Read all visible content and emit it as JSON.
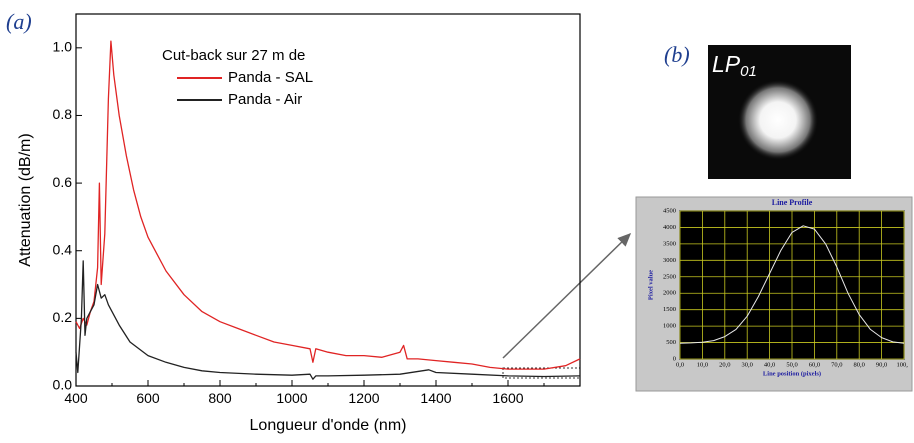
{
  "panel_labels": [
    "(a)",
    "(b)"
  ],
  "mode_image": {
    "label": "LP",
    "subscript": "01"
  },
  "chart_data": [
    {
      "type": "line",
      "legend_title": "Cut-back sur 27 m de",
      "xlabel": "Longueur d'onde (nm)",
      "ylabel": "Attenuation (dB/m)",
      "xlim": [
        400,
        1800
      ],
      "ylim": [
        0,
        1.1
      ],
      "xticks": [
        400,
        600,
        800,
        1000,
        1200,
        1400,
        1600
      ],
      "yticks": [
        {
          "value": 0,
          "label": "0.0"
        },
        0.2,
        0.4,
        0.6,
        0.8,
        {
          "value": 1,
          "label": "1.0"
        }
      ],
      "series": [
        {
          "name": "Panda - SAL",
          "color": "#e02424",
          "x": [
            400,
            410,
            420,
            430,
            440,
            450,
            460,
            465,
            470,
            480,
            490,
            497,
            505,
            520,
            540,
            560,
            580,
            600,
            650,
            700,
            750,
            800,
            850,
            900,
            950,
            1000,
            1050,
            1058,
            1066,
            1100,
            1150,
            1200,
            1250,
            1300,
            1310,
            1320,
            1350,
            1400,
            1450,
            1500,
            1550,
            1600,
            1650,
            1700,
            1760,
            1800
          ],
          "values": [
            0.19,
            0.17,
            0.2,
            0.18,
            0.22,
            0.25,
            0.35,
            0.6,
            0.3,
            0.45,
            0.85,
            1.02,
            0.92,
            0.8,
            0.68,
            0.58,
            0.5,
            0.44,
            0.34,
            0.27,
            0.22,
            0.19,
            0.17,
            0.15,
            0.13,
            0.12,
            0.11,
            0.07,
            0.11,
            0.1,
            0.09,
            0.09,
            0.085,
            0.1,
            0.12,
            0.08,
            0.08,
            0.075,
            0.07,
            0.065,
            0.055,
            0.05,
            0.05,
            0.05,
            0.06,
            0.08
          ]
        },
        {
          "name": "Panda - Air",
          "color": "#222222",
          "x": [
            400,
            405,
            415,
            420,
            425,
            430,
            440,
            450,
            460,
            470,
            480,
            490,
            500,
            520,
            550,
            600,
            650,
            700,
            750,
            800,
            900,
            1000,
            1050,
            1058,
            1066,
            1100,
            1200,
            1300,
            1380,
            1400,
            1500,
            1600,
            1700,
            1800
          ],
          "values": [
            0.1,
            0.04,
            0.2,
            0.37,
            0.15,
            0.2,
            0.22,
            0.24,
            0.3,
            0.26,
            0.27,
            0.24,
            0.22,
            0.18,
            0.13,
            0.09,
            0.07,
            0.055,
            0.045,
            0.04,
            0.035,
            0.032,
            0.035,
            0.02,
            0.03,
            0.03,
            0.032,
            0.035,
            0.048,
            0.04,
            0.035,
            0.03,
            0.028,
            0.03
          ]
        }
      ]
    },
    {
      "type": "line",
      "title": "Line Profile",
      "xlabel": "Line position (pixels)",
      "ylabel": "Pixel value",
      "xlim": [
        0,
        100
      ],
      "ylim": [
        0,
        4500
      ],
      "xticks": [
        {
          "value": 0,
          "label": "0,0"
        },
        {
          "value": 10,
          "label": "10,0"
        },
        {
          "value": 20,
          "label": "20,0"
        },
        {
          "value": 30,
          "label": "30,0"
        },
        {
          "value": 40,
          "label": "40,0"
        },
        {
          "value": 50,
          "label": "50,0"
        },
        {
          "value": 60,
          "label": "60,0"
        },
        {
          "value": 70,
          "label": "70,0"
        },
        {
          "value": 80,
          "label": "80,0"
        },
        {
          "value": 90,
          "label": "90,0"
        },
        {
          "value": 100,
          "label": "100,"
        }
      ],
      "yticks": [
        0,
        250,
        500,
        750,
        1000,
        1250,
        1500,
        1750,
        2000,
        2250,
        2500,
        2750,
        3000,
        3250,
        3500,
        3750,
        4000,
        4250,
        4500
      ],
      "grid": true,
      "series": [
        {
          "color": "#e8e8e8",
          "x": [
            0,
            5,
            10,
            15,
            20,
            25,
            30,
            35,
            40,
            45,
            50,
            55,
            60,
            65,
            70,
            75,
            80,
            85,
            90,
            95,
            100
          ],
          "values": [
            480,
            490,
            510,
            560,
            680,
            900,
            1300,
            1900,
            2600,
            3300,
            3850,
            4050,
            3950,
            3500,
            2800,
            2000,
            1350,
            900,
            650,
            520,
            480
          ]
        }
      ]
    }
  ]
}
